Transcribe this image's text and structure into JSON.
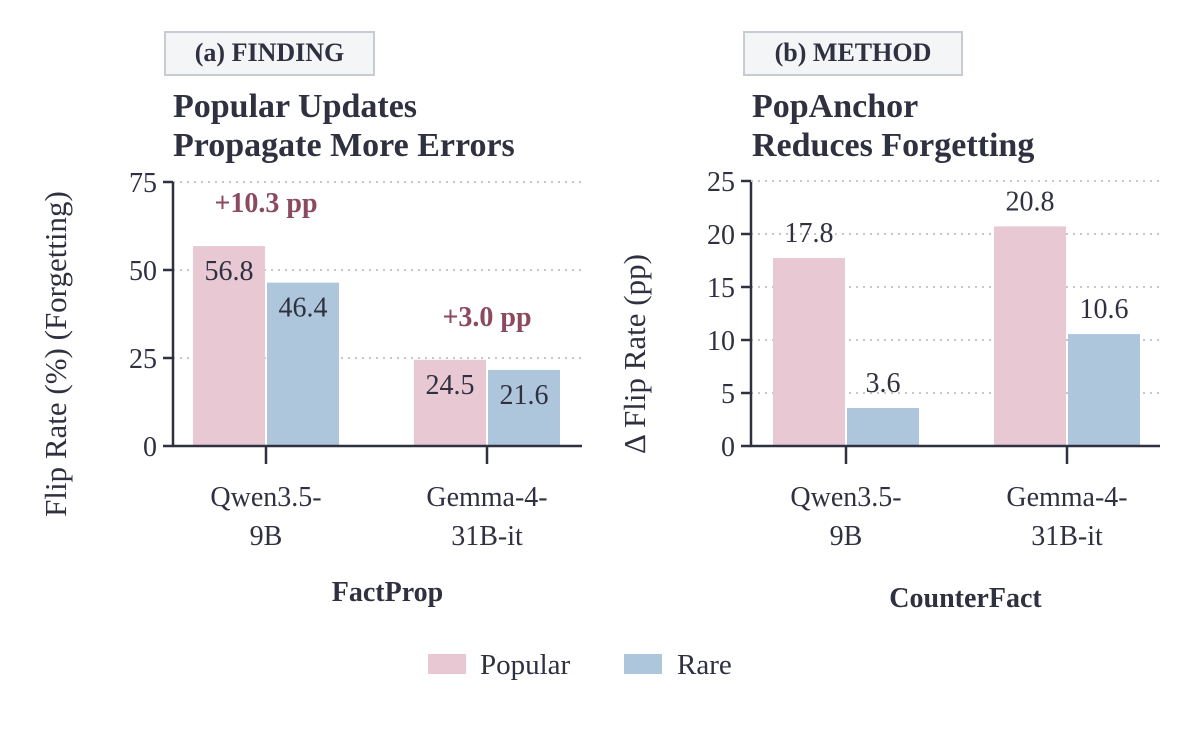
{
  "colors": {
    "popular": "#e8c8d2",
    "rare": "#aec6dc",
    "annotation": "#8c4a5e",
    "axis": "#2f3140",
    "text": "#2f3140",
    "grid": "#c4c7cc",
    "badge_fill": "#f4f5f7",
    "badge_stroke": "#c8ccd2"
  },
  "legend": {
    "items": [
      {
        "label": "Popular",
        "color": "#e8c8d2"
      },
      {
        "label": "Rare",
        "color": "#aec6dc"
      }
    ],
    "placement": "bottom-center"
  },
  "chart_data": [
    {
      "type": "bar",
      "badge": "(a)  FINDING",
      "title_lines": [
        "Popular Updates",
        "Propagate More Errors"
      ],
      "xlabel": "FactProp",
      "ylabel": "Flip Rate (%) (Forgetting)",
      "categories": [
        [
          "Qwen3.5-",
          "9B"
        ],
        [
          "Gemma-4-",
          "31B-it"
        ]
      ],
      "series": [
        {
          "name": "Popular",
          "values": [
            56.8,
            24.5
          ]
        },
        {
          "name": "Rare",
          "values": [
            46.4,
            21.6
          ]
        }
      ],
      "value_label_position": "inside",
      "annotations": [
        "+10.3 pp",
        "+3.0 pp"
      ],
      "ylim": [
        0,
        75
      ],
      "yticks": [
        "0",
        "25",
        "50",
        "75"
      ],
      "grid": true
    },
    {
      "type": "bar",
      "badge": "(b)  METHOD",
      "title_lines": [
        "PopAnchor",
        "Reduces Forgetting"
      ],
      "xlabel": "CounterFact",
      "ylabel": "Δ Flip Rate (pp)",
      "categories": [
        [
          "Qwen3.5-",
          "9B"
        ],
        [
          "Gemma-4-",
          "31B-it"
        ]
      ],
      "series": [
        {
          "name": "Popular",
          "values": [
            17.8,
            20.8
          ]
        },
        {
          "name": "Rare",
          "values": [
            3.6,
            10.6
          ]
        }
      ],
      "value_label_position": "above",
      "annotations": [],
      "ylim": [
        0,
        25
      ],
      "yticks": [
        "0",
        "5",
        "10",
        "15",
        "20",
        "25"
      ],
      "grid": true
    }
  ]
}
